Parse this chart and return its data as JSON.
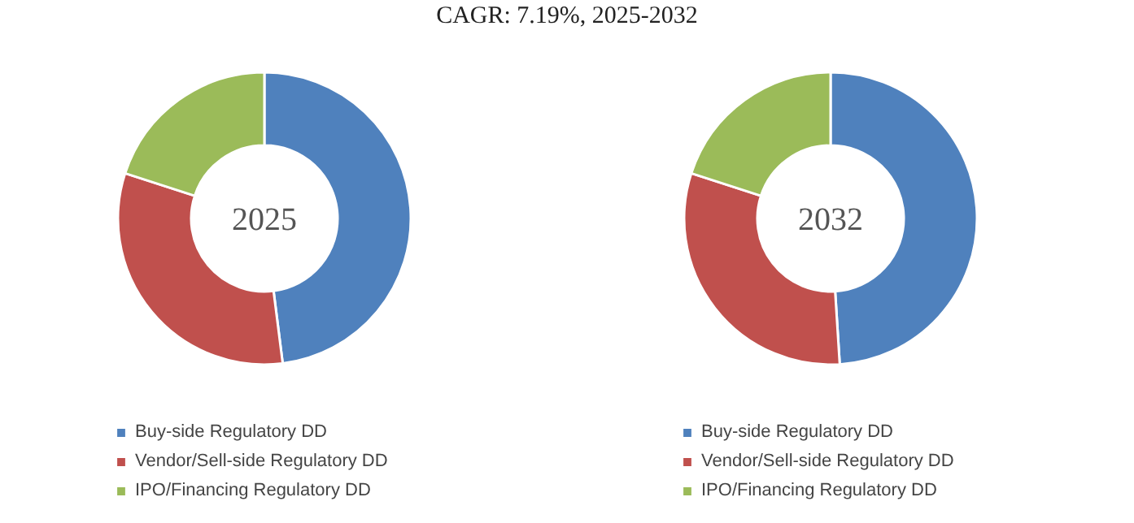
{
  "chart_data": [
    {
      "type": "donut",
      "title": "CAGR: 7.19%, 2025-2032",
      "annotations": [
        "2025"
      ],
      "categories": [
        "Buy-side Regulatory DD",
        "Vendor/Sell-side Regulatory DD",
        "IPO/Financing Regulatory DD"
      ],
      "values": [
        48,
        32,
        20
      ],
      "colors": [
        "#4f81bd",
        "#c0504d",
        "#9bbb59"
      ],
      "legend": "bottom"
    },
    {
      "type": "donut",
      "annotations": [
        "2032"
      ],
      "categories": [
        "Buy-side Regulatory DD",
        "Vendor/Sell-side Regulatory DD",
        "IPO/Financing Regulatory DD"
      ],
      "values": [
        49,
        31,
        20
      ],
      "colors": [
        "#4f81bd",
        "#c0504d",
        "#9bbb59"
      ],
      "legend": "bottom"
    }
  ]
}
